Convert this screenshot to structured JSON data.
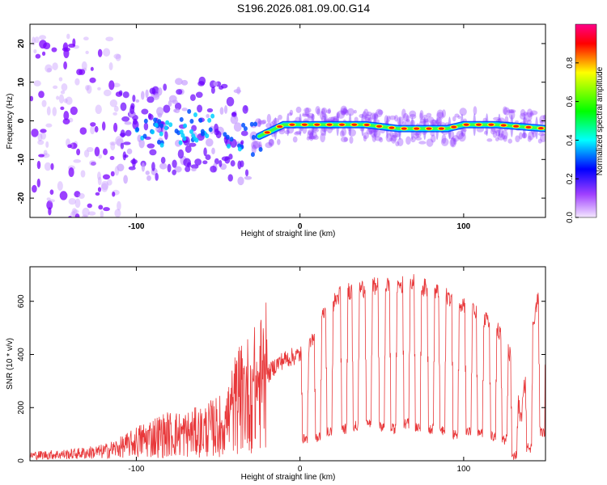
{
  "title": "S196.2026.081.09.00.G14",
  "colors": {
    "snr_line": "#e8383a",
    "colorbar_stops": [
      "#f2e6ff",
      "#7a00ff",
      "#0000ff",
      "#00ffff",
      "#00ff00",
      "#ffff00",
      "#ff0000",
      "#ff0088"
    ]
  },
  "chart_data": [
    {
      "type": "heatmap",
      "name": "spectrogram",
      "xlabel": "Height of straight line (km)",
      "ylabel": "Frequency (Hz)",
      "xlim": [
        -165,
        150
      ],
      "ylim": [
        -25,
        25
      ],
      "xticks": [
        -100,
        0,
        100
      ],
      "xtick_labels": [
        "-100",
        "0",
        "100"
      ],
      "yticks": [
        20,
        10,
        0,
        -10,
        -20
      ],
      "ytick_labels": [
        "20",
        "10",
        "0",
        "-10",
        "-20"
      ],
      "colorbar": {
        "label": "Normalized spectral amplitude",
        "range": [
          0,
          1
        ],
        "ticks": [
          0.0,
          0.2,
          0.4,
          0.6,
          0.8
        ],
        "tick_labels": [
          "0.0",
          "0.2",
          "0.4",
          "0.6",
          "0.8"
        ]
      },
      "ridge": {
        "x": [
          -165,
          -120,
          -100,
          -80,
          -60,
          -40,
          -30,
          -20,
          -10,
          0,
          20,
          40,
          60,
          80,
          90,
          100,
          120,
          150
        ],
        "frequency": [
          -3,
          -3,
          -4,
          -2,
          -1,
          -3,
          -5,
          -3,
          -1,
          -1,
          -1,
          -1,
          -2,
          -2,
          -2,
          -1,
          -1,
          -2
        ]
      }
    },
    {
      "type": "line",
      "name": "snr",
      "xlabel": "Height of straight line (km)",
      "ylabel": "SNR (10 * v/v)",
      "xlim": [
        -165,
        150
      ],
      "ylim": [
        0,
        730
      ],
      "xticks": [
        -100,
        0,
        100
      ],
      "xtick_labels": [
        "-100",
        "0",
        "100"
      ],
      "yticks": [
        0,
        200,
        400,
        600
      ],
      "ytick_labels": [
        "0",
        "200",
        "400",
        "600"
      ],
      "series": [
        {
          "name": "SNR",
          "x": [
            -165,
            -140,
            -120,
            -110,
            -100,
            -90,
            -80,
            -70,
            -60,
            -50,
            -45,
            -40,
            -35,
            -30,
            -25,
            -20,
            -15,
            -10,
            -5,
            0,
            5,
            10,
            15,
            20,
            25,
            30,
            40,
            50,
            60,
            70,
            80,
            90,
            100,
            110,
            120,
            130,
            135,
            140,
            145,
            150
          ],
          "values": [
            20,
            25,
            35,
            50,
            70,
            90,
            100,
            100,
            110,
            130,
            150,
            210,
            240,
            260,
            280,
            320,
            360,
            380,
            390,
            400,
            420,
            470,
            560,
            590,
            630,
            640,
            650,
            660,
            660,
            670,
            640,
            620,
            590,
            540,
            500,
            380,
            150,
            450,
            600,
            640
          ]
        }
      ],
      "dropouts": [
        {
          "x": 3,
          "value": 80
        },
        {
          "x": 11,
          "value": 90
        },
        {
          "x": 18,
          "value": 110
        },
        {
          "x": 27,
          "value": 120
        },
        {
          "x": 34,
          "value": 130
        },
        {
          "x": 42,
          "value": 140
        },
        {
          "x": 50,
          "value": 130
        },
        {
          "x": 57,
          "value": 120
        },
        {
          "x": 65,
          "value": 140
        },
        {
          "x": 72,
          "value": 130
        },
        {
          "x": 80,
          "value": 120
        },
        {
          "x": 87,
          "value": 110
        },
        {
          "x": 95,
          "value": 100
        },
        {
          "x": 103,
          "value": 110
        },
        {
          "x": 110,
          "value": 100
        },
        {
          "x": 118,
          "value": 90
        },
        {
          "x": 125,
          "value": 80
        },
        {
          "x": 131,
          "value": 20
        },
        {
          "x": 140,
          "value": 50
        },
        {
          "x": 148,
          "value": 110
        }
      ]
    }
  ]
}
